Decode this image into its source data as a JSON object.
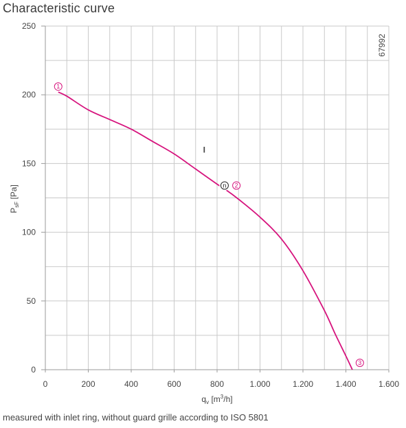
{
  "title": "Characteristic curve",
  "footnote": "measured with inlet ring, without guard grille according to ISO 5801",
  "chart_data": {
    "type": "line",
    "xlabel": {
      "main": "q",
      "sub": "v",
      "unit_pre": " [m",
      "sup": "3",
      "unit_post": "/h]"
    },
    "ylabel": {
      "main": "P",
      "sub": "sF",
      "unit": " [Pa]"
    },
    "xlim": [
      0,
      1600
    ],
    "ylim": [
      0,
      250
    ],
    "x_ticks": [
      0,
      200,
      400,
      600,
      800,
      1000,
      1200,
      1400,
      1600
    ],
    "x_tick_labels": [
      "0",
      "200",
      "400",
      "600",
      "800",
      "1.000",
      "1.200",
      "1.400",
      "1.600"
    ],
    "y_ticks": [
      0,
      50,
      100,
      150,
      200,
      250
    ],
    "y_tick_labels": [
      "0",
      "50",
      "100",
      "150",
      "200",
      "250"
    ],
    "grid": true,
    "code": "67992",
    "curve_label": "I",
    "curve_color": "#d6137d",
    "series": [
      {
        "x": [
          60,
          100,
          200,
          300,
          400,
          500,
          600,
          700,
          800,
          840,
          900,
          1000,
          1100,
          1200,
          1300,
          1350,
          1400,
          1430
        ],
        "y": [
          202,
          199,
          189,
          182,
          175,
          166,
          157,
          146,
          135,
          131,
          124,
          111,
          95,
          72,
          43,
          26,
          10,
          0
        ]
      }
    ],
    "operating_points": [
      {
        "label": "1",
        "x": 60,
        "y": 206
      },
      {
        "label": "2",
        "x": 890,
        "y": 134
      },
      {
        "label": "3",
        "x": 1465,
        "y": 5
      }
    ],
    "nominal_point": {
      "label": "n",
      "x": 835,
      "y": 134
    }
  }
}
